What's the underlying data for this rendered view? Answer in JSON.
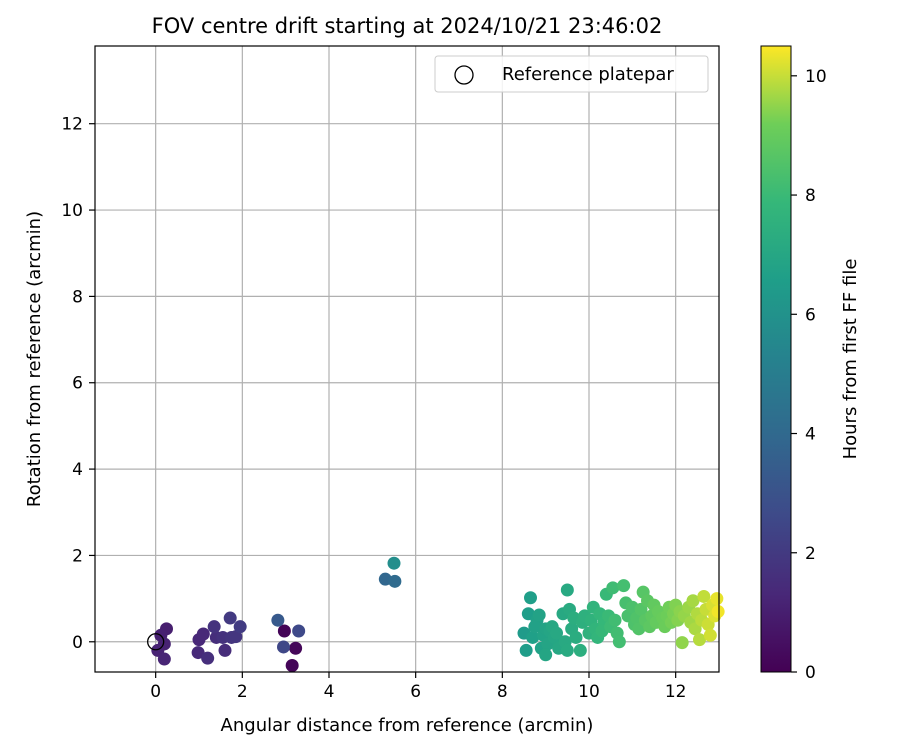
{
  "chart_data": {
    "type": "scatter",
    "title": "FOV centre drift starting at 2024/10/21 23:46:02",
    "xlabel": "Angular distance from reference (arcmin)",
    "ylabel": "Rotation from reference (arcmin)",
    "xlim": [
      -1.4,
      13.0
    ],
    "ylim": [
      -0.7,
      13.8
    ],
    "xticks": [
      0,
      2,
      4,
      6,
      8,
      10,
      12
    ],
    "yticks": [
      0,
      2,
      4,
      6,
      8,
      10,
      12
    ],
    "grid": true,
    "legend": {
      "placement": "top-right",
      "entries": [
        "Reference platepar"
      ]
    },
    "reference_point": {
      "x": 0,
      "y": 0
    },
    "colorbar": {
      "label": "Hours from first FF file",
      "range": [
        0,
        10.5
      ],
      "ticks": [
        0,
        2,
        4,
        6,
        8,
        10
      ],
      "colormap": "viridis"
    },
    "series": [
      {
        "points": [
          {
            "x": 2.97,
            "y": 0.25,
            "t": 0.1
          },
          {
            "x": 3.15,
            "y": -0.55,
            "t": 0.15
          },
          {
            "x": 3.23,
            "y": -0.15,
            "t": 0.2
          },
          {
            "x": 0.25,
            "y": 0.3,
            "t": 1.0
          },
          {
            "x": 0.12,
            "y": 0.15,
            "t": 1.05
          },
          {
            "x": 0.2,
            "y": -0.05,
            "t": 1.1
          },
          {
            "x": 0.05,
            "y": -0.2,
            "t": 1.15
          },
          {
            "x": 0.2,
            "y": -0.4,
            "t": 1.2
          },
          {
            "x": 1.0,
            "y": 0.05,
            "t": 1.3
          },
          {
            "x": 1.1,
            "y": 0.18,
            "t": 1.35
          },
          {
            "x": 0.98,
            "y": -0.25,
            "t": 1.4
          },
          {
            "x": 1.6,
            "y": -0.2,
            "t": 1.5
          },
          {
            "x": 1.4,
            "y": 0.1,
            "t": 1.55
          },
          {
            "x": 1.2,
            "y": -0.38,
            "t": 1.6
          },
          {
            "x": 1.55,
            "y": 0.1,
            "t": 1.7
          },
          {
            "x": 1.35,
            "y": 0.35,
            "t": 1.75
          },
          {
            "x": 1.75,
            "y": 0.1,
            "t": 1.8
          },
          {
            "x": 1.85,
            "y": 0.12,
            "t": 1.85
          },
          {
            "x": 1.72,
            "y": 0.55,
            "t": 2.0
          },
          {
            "x": 1.95,
            "y": 0.35,
            "t": 2.05
          },
          {
            "x": 2.95,
            "y": -0.12,
            "t": 2.5
          },
          {
            "x": 3.3,
            "y": 0.25,
            "t": 2.6
          },
          {
            "x": 2.82,
            "y": 0.5,
            "t": 3.3
          },
          {
            "x": 5.3,
            "y": 1.45,
            "t": 3.9
          },
          {
            "x": 5.52,
            "y": 1.4,
            "t": 4.1
          },
          {
            "x": 5.5,
            "y": 1.82,
            "t": 5.8
          },
          {
            "x": 8.5,
            "y": 0.2,
            "t": 6.4
          },
          {
            "x": 8.55,
            "y": -0.2,
            "t": 6.5
          },
          {
            "x": 8.6,
            "y": 0.65,
            "t": 6.55
          },
          {
            "x": 8.65,
            "y": 1.02,
            "t": 6.6
          },
          {
            "x": 8.7,
            "y": 0.1,
            "t": 6.65
          },
          {
            "x": 8.8,
            "y": 0.5,
            "t": 6.7
          },
          {
            "x": 8.75,
            "y": 0.35,
            "t": 6.72
          },
          {
            "x": 8.9,
            "y": -0.15,
            "t": 6.75
          },
          {
            "x": 8.85,
            "y": 0.62,
            "t": 6.78
          },
          {
            "x": 8.95,
            "y": 0.15,
            "t": 6.8
          },
          {
            "x": 9.0,
            "y": 0.3,
            "t": 6.85
          },
          {
            "x": 9.05,
            "y": -0.05,
            "t": 6.9
          },
          {
            "x": 9.1,
            "y": 0.25,
            "t": 6.92
          },
          {
            "x": 9.0,
            "y": -0.3,
            "t": 6.95
          },
          {
            "x": 9.2,
            "y": 0.1,
            "t": 7.0
          },
          {
            "x": 9.15,
            "y": 0.35,
            "t": 7.02
          },
          {
            "x": 9.3,
            "y": -0.15,
            "t": 7.05
          },
          {
            "x": 9.25,
            "y": 0.2,
            "t": 7.08
          },
          {
            "x": 9.4,
            "y": 0.65,
            "t": 7.1
          },
          {
            "x": 9.5,
            "y": 1.2,
            "t": 7.12
          },
          {
            "x": 9.45,
            "y": 0.0,
            "t": 7.15
          },
          {
            "x": 9.5,
            "y": -0.2,
            "t": 7.18
          },
          {
            "x": 9.55,
            "y": 0.75,
            "t": 7.2
          },
          {
            "x": 9.6,
            "y": 0.3,
            "t": 7.25
          },
          {
            "x": 9.7,
            "y": 0.1,
            "t": 7.3
          },
          {
            "x": 9.65,
            "y": 0.55,
            "t": 7.35
          },
          {
            "x": 9.8,
            "y": -0.2,
            "t": 7.4
          },
          {
            "x": 9.85,
            "y": 0.45,
            "t": 7.45
          },
          {
            "x": 9.9,
            "y": 0.6,
            "t": 7.5
          },
          {
            "x": 10.0,
            "y": 0.2,
            "t": 7.55
          },
          {
            "x": 10.05,
            "y": 0.5,
            "t": 7.6
          },
          {
            "x": 10.1,
            "y": 0.8,
            "t": 7.65
          },
          {
            "x": 10.15,
            "y": 0.3,
            "t": 7.7
          },
          {
            "x": 10.2,
            "y": 0.1,
            "t": 7.75
          },
          {
            "x": 10.25,
            "y": 0.65,
            "t": 7.8
          },
          {
            "x": 10.35,
            "y": 0.45,
            "t": 7.85
          },
          {
            "x": 10.3,
            "y": 0.25,
            "t": 7.9
          },
          {
            "x": 10.4,
            "y": 1.1,
            "t": 7.95
          },
          {
            "x": 10.45,
            "y": 0.6,
            "t": 8.0
          },
          {
            "x": 10.5,
            "y": 0.35,
            "t": 8.05
          },
          {
            "x": 10.55,
            "y": 1.25,
            "t": 8.1
          },
          {
            "x": 10.6,
            "y": 0.5,
            "t": 8.15
          },
          {
            "x": 10.65,
            "y": 0.2,
            "t": 8.18
          },
          {
            "x": 10.7,
            "y": 0.0,
            "t": 8.2
          },
          {
            "x": 10.8,
            "y": 1.3,
            "t": 8.25
          },
          {
            "x": 10.85,
            "y": 0.9,
            "t": 8.3
          },
          {
            "x": 10.9,
            "y": 0.6,
            "t": 8.35
          },
          {
            "x": 11.0,
            "y": 0.8,
            "t": 8.4
          },
          {
            "x": 11.05,
            "y": 0.4,
            "t": 8.45
          },
          {
            "x": 11.1,
            "y": 0.55,
            "t": 8.5
          },
          {
            "x": 11.15,
            "y": 0.3,
            "t": 8.55
          },
          {
            "x": 11.2,
            "y": 0.75,
            "t": 8.6
          },
          {
            "x": 11.25,
            "y": 1.15,
            "t": 8.65
          },
          {
            "x": 11.3,
            "y": 0.5,
            "t": 8.7
          },
          {
            "x": 11.35,
            "y": 0.95,
            "t": 8.75
          },
          {
            "x": 11.4,
            "y": 0.35,
            "t": 8.8
          },
          {
            "x": 11.45,
            "y": 0.6,
            "t": 8.85
          },
          {
            "x": 11.5,
            "y": 0.85,
            "t": 8.9
          },
          {
            "x": 11.55,
            "y": 0.45,
            "t": 8.95
          },
          {
            "x": 11.6,
            "y": 0.7,
            "t": 9.0
          },
          {
            "x": 11.7,
            "y": 0.55,
            "t": 9.05
          },
          {
            "x": 11.75,
            "y": 0.35,
            "t": 9.1
          },
          {
            "x": 11.8,
            "y": 0.6,
            "t": 9.15
          },
          {
            "x": 11.85,
            "y": 0.8,
            "t": 9.2
          },
          {
            "x": 11.9,
            "y": 0.45,
            "t": 9.25
          },
          {
            "x": 11.95,
            "y": 0.65,
            "t": 9.3
          },
          {
            "x": 12.0,
            "y": 0.85,
            "t": 9.35
          },
          {
            "x": 12.05,
            "y": 0.5,
            "t": 9.4
          },
          {
            "x": 12.1,
            "y": 0.7,
            "t": 9.45
          },
          {
            "x": 12.15,
            "y": -0.02,
            "t": 9.5
          },
          {
            "x": 12.2,
            "y": 0.6,
            "t": 9.55
          },
          {
            "x": 12.3,
            "y": 0.8,
            "t": 9.6
          },
          {
            "x": 12.35,
            "y": 0.45,
            "t": 9.65
          },
          {
            "x": 12.4,
            "y": 0.95,
            "t": 9.7
          },
          {
            "x": 12.45,
            "y": 0.3,
            "t": 9.75
          },
          {
            "x": 12.5,
            "y": 0.65,
            "t": 9.8
          },
          {
            "x": 12.55,
            "y": 0.05,
            "t": 9.85
          },
          {
            "x": 12.6,
            "y": 0.5,
            "t": 9.9
          },
          {
            "x": 12.65,
            "y": 1.05,
            "t": 9.95
          },
          {
            "x": 12.7,
            "y": 0.75,
            "t": 10.0
          },
          {
            "x": 12.75,
            "y": 0.4,
            "t": 10.05
          },
          {
            "x": 12.8,
            "y": 0.15,
            "t": 10.1
          },
          {
            "x": 12.85,
            "y": 0.85,
            "t": 10.15
          },
          {
            "x": 12.9,
            "y": 0.6,
            "t": 10.2
          },
          {
            "x": 12.95,
            "y": 1.0,
            "t": 10.3
          },
          {
            "x": 12.98,
            "y": 0.7,
            "t": 10.4
          }
        ]
      }
    ]
  }
}
